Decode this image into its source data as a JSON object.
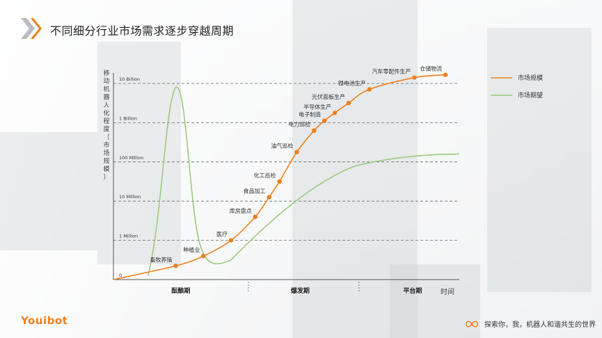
{
  "header": {
    "title": "不同细分行业市场需求逐步穿越周期"
  },
  "brand": {
    "logo_text": "Youibot",
    "accent": "#ef7f1a"
  },
  "footer": {
    "slogan": "探索你，我，机器人和谐共生的世界"
  },
  "chart_data": {
    "type": "line",
    "title": "",
    "ylabel": "移动机器人化程度（市场规模）",
    "xlabel": "时间",
    "y_scale": "log",
    "y_ticks": [
      "0",
      "1 Million",
      "10 Million",
      "100 Million",
      "1 Billion",
      "10 Billion"
    ],
    "phases": [
      "酝酿期",
      "爆发期",
      "平台期"
    ],
    "legend_position": "top-right",
    "series": [
      {
        "name": "市场规模",
        "color": "#ef7f1a",
        "points": [
          {
            "t": 0.18,
            "v": 0.35,
            "label": "畜牧养殖"
          },
          {
            "t": 0.26,
            "v": 0.6,
            "label": "种植业"
          },
          {
            "t": 0.34,
            "v": 1.0,
            "label": "医疗"
          },
          {
            "t": 0.41,
            "v": 1.6,
            "label": "库房盘点"
          },
          {
            "t": 0.45,
            "v": 2.1,
            "label": "食品加工"
          },
          {
            "t": 0.48,
            "v": 2.5,
            "label": "化工巡检"
          },
          {
            "t": 0.53,
            "v": 3.25,
            "label": "油气巡检"
          },
          {
            "t": 0.58,
            "v": 3.8,
            "label": "电力巡检"
          },
          {
            "t": 0.61,
            "v": 4.05,
            "label": "电子制造"
          },
          {
            "t": 0.64,
            "v": 4.25,
            "label": "半导体生产"
          },
          {
            "t": 0.68,
            "v": 4.5,
            "label": "光伏面板生产"
          },
          {
            "t": 0.74,
            "v": 4.85,
            "label": "锂电池生产"
          },
          {
            "t": 0.87,
            "v": 5.15,
            "label": "汽车零配件生产"
          },
          {
            "t": 0.96,
            "v": 5.22,
            "label": "仓储物流"
          }
        ]
      },
      {
        "name": "市场期望",
        "color": "#9acb7a"
      }
    ]
  }
}
